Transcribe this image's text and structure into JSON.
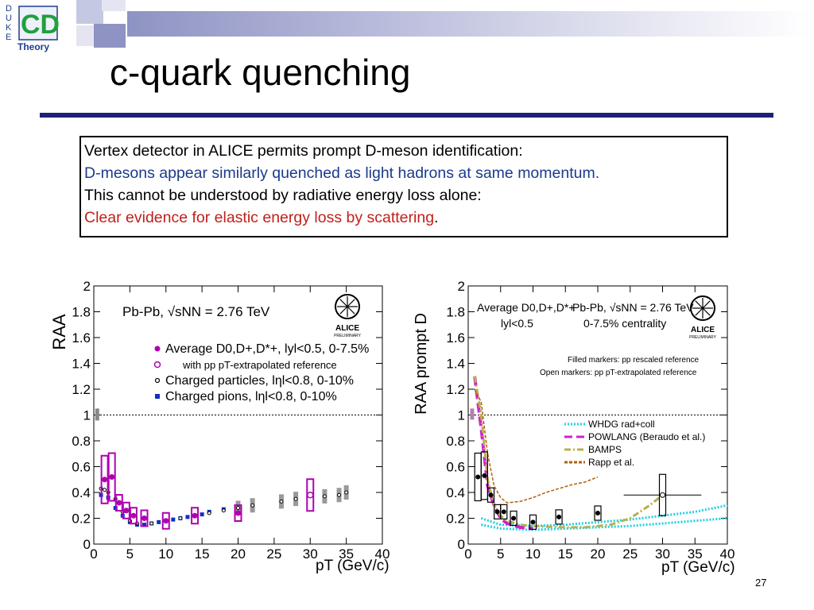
{
  "slide": {
    "title": "c-quark quenching",
    "page_number": "27",
    "logo": {
      "letters": [
        "D",
        "U",
        "K",
        "E"
      ],
      "word": "Theory",
      "monogram": "CD",
      "icon": "duke-theory-logo"
    },
    "colors": {
      "rule": "#1f1f7a",
      "blue_text": "#1a3a8c",
      "red_text": "#c0201a"
    }
  },
  "textbox": {
    "line1": "Vertex detector in ALICE permits prompt D-meson identification:",
    "line2": "D-mesons appear similarly quenched as light hadrons at same momentum.",
    "line3": "This cannot be understood by radiative energy loss alone:",
    "line4": "Clear evidence for elastic energy loss by scattering",
    "line4_tail": "."
  },
  "chart_data": [
    {
      "type": "scatter",
      "ylabel": "RAA",
      "xlabel": "pT (GeV/c)",
      "xlim": [
        0,
        40
      ],
      "ylim": [
        0,
        2
      ],
      "xticks": [
        "0",
        "5",
        "10",
        "15",
        "20",
        "25",
        "30",
        "35",
        "40"
      ],
      "yticks": [
        "0",
        "0.2",
        "0.4",
        "0.6",
        "0.8",
        "1",
        "1.2",
        "1.4",
        "1.6",
        "1.8",
        "2"
      ],
      "annotation": "Pb-Pb, √sNN = 2.76 TeV",
      "logo_text": "ALICE",
      "logo_subtext": "PRELIMINARY",
      "reference_line": 1,
      "legend": [
        {
          "label": "Average D0,D+,D*+, lyl<0.5, 0-7.5%",
          "color": "#b000b0",
          "marker": "filled-circle"
        },
        {
          "label": "with pp pT-extrapolated reference",
          "color": "#b000b0",
          "marker": "open-circle"
        },
        {
          "label": "Charged particles, lηl<0.8, 0-10%",
          "color": "#000000",
          "marker": "open-circle-small"
        },
        {
          "label": "Charged pions, lηl<0.8, 0-10%",
          "color": "#1030c0",
          "marker": "filled-square"
        }
      ],
      "series": [
        {
          "name": "Average D0,D+,D*+, lyl<0.5, 0-7.5%",
          "color": "#b000b0",
          "x": [
            1.5,
            2.5,
            3.5,
            4.5,
            5.5,
            7,
            10,
            14,
            20
          ],
          "y": [
            0.5,
            0.52,
            0.32,
            0.26,
            0.22,
            0.2,
            0.18,
            0.22,
            0.24
          ]
        },
        {
          "name": "with pp pT-extrapolated reference",
          "color": "#b000b0",
          "x": [
            30
          ],
          "y": [
            0.38
          ]
        },
        {
          "name": "Charged particles, lηl<0.8, 0-10%",
          "color": "#000000",
          "x": [
            1,
            1.5,
            2,
            3,
            4,
            5,
            6,
            8,
            10,
            12,
            14,
            16,
            18,
            20,
            22,
            26,
            28,
            32,
            34,
            35
          ],
          "y": [
            0.43,
            0.42,
            0.4,
            0.35,
            0.25,
            0.18,
            0.16,
            0.16,
            0.18,
            0.2,
            0.22,
            0.24,
            0.26,
            0.28,
            0.3,
            0.33,
            0.35,
            0.37,
            0.38,
            0.4
          ]
        },
        {
          "name": "Charged pions, lηl<0.8, 0-10%",
          "color": "#1030c0",
          "x": [
            1,
            2,
            3,
            4,
            5,
            6,
            7,
            8,
            9,
            10,
            11,
            12,
            13,
            14,
            15,
            16,
            18
          ],
          "y": [
            0.38,
            0.36,
            0.28,
            0.22,
            0.17,
            0.15,
            0.15,
            0.16,
            0.17,
            0.18,
            0.19,
            0.2,
            0.21,
            0.22,
            0.23,
            0.25,
            0.27
          ]
        }
      ]
    },
    {
      "type": "line",
      "ylabel": "RAA prompt D",
      "xlabel": "pT (GeV/c)",
      "xlim": [
        0,
        40
      ],
      "ylim": [
        0,
        2
      ],
      "xticks": [
        "0",
        "5",
        "10",
        "15",
        "20",
        "25",
        "30",
        "35",
        "40"
      ],
      "yticks": [
        "0",
        "0.2",
        "0.4",
        "0.6",
        "0.8",
        "1",
        "1.2",
        "1.4",
        "1.6",
        "1.8",
        "2"
      ],
      "annotation_line1": "Average D0,D+,D*+",
      "annotation_sqrt": "Pb-Pb, √sNN = 2.76 TeV",
      "annotation_line2": "lyl<0.5",
      "annotation_centrality": "0-7.5% centrality",
      "note_filled": "Filled markers: pp rescaled reference",
      "note_open": "Open markers: pp pT-extrapolated reference",
      "logo_text": "ALICE",
      "logo_subtext": "PRELIMINARY",
      "reference_line": 1,
      "legend": [
        {
          "label": "WHDG rad+coll",
          "color": "#22d0e0",
          "style": "dotted"
        },
        {
          "label": "POWLANG (Beraudo et al.)",
          "color": "#d020d0",
          "style": "dashed"
        },
        {
          "label": "BAMPS",
          "color": "#b8b050",
          "style": "dashdot"
        },
        {
          "label": "Rapp et al.",
          "color": "#b06010",
          "style": "dashed-fine"
        }
      ],
      "series": [
        {
          "name": "prompt D (filled)",
          "color": "#000000",
          "x": [
            1.5,
            2.5,
            3.5,
            4.5,
            5.5,
            7,
            10,
            14,
            20
          ],
          "y": [
            0.52,
            0.53,
            0.38,
            0.25,
            0.25,
            0.2,
            0.17,
            0.21,
            0.24
          ]
        },
        {
          "name": "prompt D (open)",
          "color": "#000000",
          "x": [
            30
          ],
          "y": [
            0.38
          ]
        },
        {
          "name": "WHDG rad+coll",
          "color": "#22d0e0",
          "x": [
            2,
            5,
            10,
            15,
            20,
            25,
            30,
            35,
            40
          ],
          "y": [
            0.2,
            0.15,
            0.14,
            0.15,
            0.17,
            0.19,
            0.22,
            0.25,
            0.3
          ]
        },
        {
          "name": "WHDG rad+coll (lower)",
          "color": "#22d0e0",
          "x": [
            2,
            5,
            10,
            15,
            20,
            25,
            30,
            35,
            40
          ],
          "y": [
            0.15,
            0.12,
            0.11,
            0.12,
            0.13,
            0.14,
            0.16,
            0.18,
            0.2
          ]
        },
        {
          "name": "POWLANG (Beraudo et al.)",
          "color": "#d020d0",
          "x": [
            1,
            2,
            3,
            4,
            5,
            6,
            8,
            10
          ],
          "y": [
            1.3,
            0.9,
            0.45,
            0.3,
            0.2,
            0.16,
            0.13,
            0.12
          ]
        },
        {
          "name": "BAMPS",
          "color": "#b8b050",
          "x": [
            1,
            2,
            3,
            4,
            5,
            6,
            8,
            10,
            14,
            18,
            22,
            25,
            28,
            30
          ],
          "y": [
            1.3,
            1.0,
            0.5,
            0.3,
            0.22,
            0.18,
            0.15,
            0.14,
            0.13,
            0.13,
            0.15,
            0.2,
            0.3,
            0.38
          ]
        },
        {
          "name": "Rapp et al.",
          "color": "#b06010",
          "x": [
            1,
            2,
            3,
            4,
            5,
            6,
            8,
            10,
            12,
            14,
            16,
            18,
            20
          ],
          "y": [
            1.2,
            1.1,
            0.7,
            0.45,
            0.36,
            0.32,
            0.33,
            0.36,
            0.4,
            0.43,
            0.46,
            0.48,
            0.52
          ]
        }
      ]
    }
  ]
}
